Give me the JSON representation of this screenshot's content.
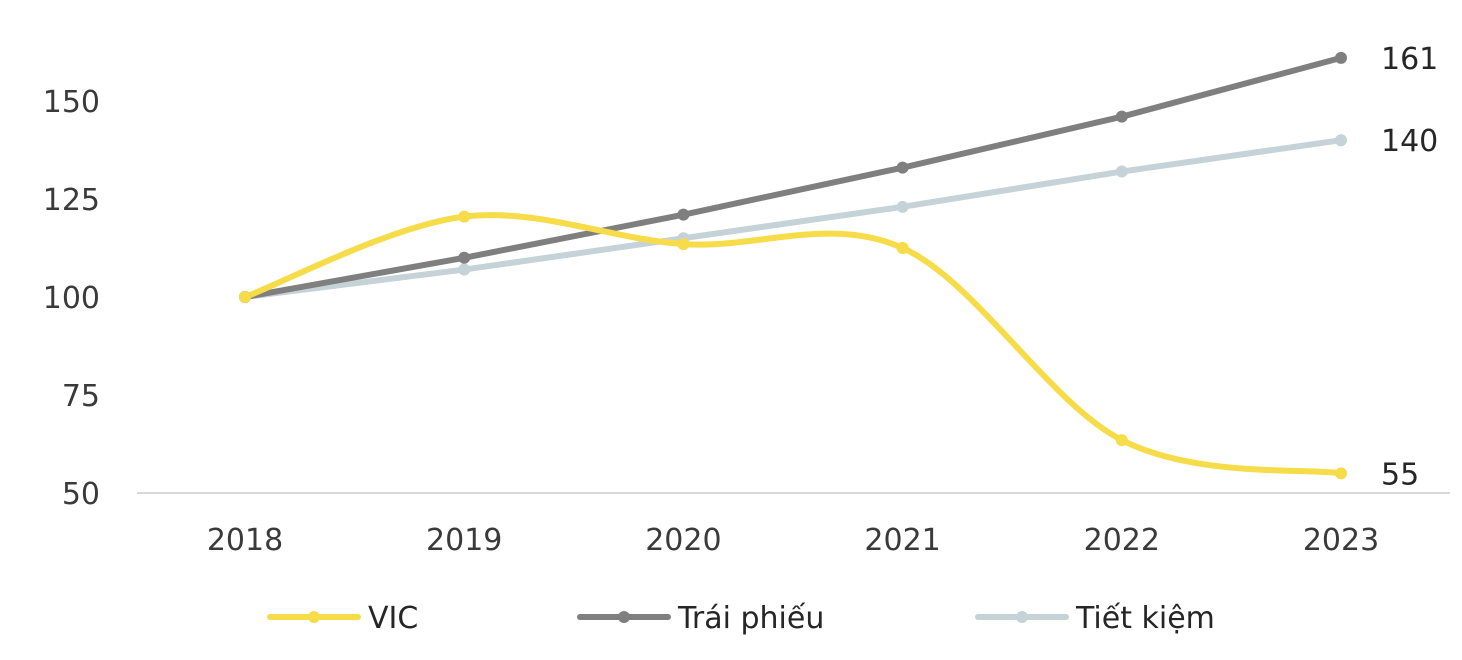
{
  "chart_data": {
    "type": "line",
    "title": "",
    "xlabel": "",
    "ylabel": "",
    "categories": [
      "2018",
      "2019",
      "2020",
      "2021",
      "2022",
      "2023"
    ],
    "yticks": [
      50,
      75,
      100,
      125,
      150
    ],
    "ylim": [
      50,
      165
    ],
    "grid": false,
    "legend": "bottom",
    "smooth_series": [
      "VIC"
    ],
    "series": [
      {
        "name": "VIC",
        "color": "#F7DC4A",
        "values": [
          100,
          120.5,
          113.5,
          112.5,
          63.5,
          55
        ],
        "end_label": "55"
      },
      {
        "name": "Trái phiếu",
        "color": "#7F7F7F",
        "values": [
          100,
          110,
          121,
          133,
          146,
          161
        ],
        "end_label": "161"
      },
      {
        "name": "Tiết kiệm",
        "color": "#C5D2D7",
        "values": [
          100,
          107,
          115,
          123,
          132,
          140
        ],
        "end_label": "140"
      }
    ]
  }
}
